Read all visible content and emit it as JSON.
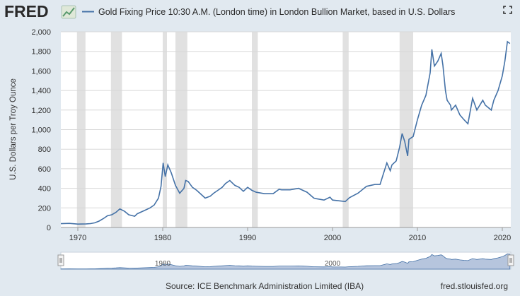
{
  "header": {
    "logo_text": "FRED",
    "legend_label": "Gold Fixing Price 10:30 A.M. (London time) in London Bullion Market, based in U.S. Dollars",
    "fullscreen_icon": "expand-icon"
  },
  "footer": {
    "source": "Source: ICE Benchmark Administration Limited (IBA)",
    "site": "fred.stlouisfed.org"
  },
  "colors": {
    "background": "#e1e9f0",
    "plot_bg": "#ffffff",
    "series": "#4572a7",
    "recession": "#e1e1e1",
    "navigator_fill": "#9db2d1"
  },
  "chart_data": {
    "type": "line",
    "title": "",
    "xlabel": "",
    "ylabel": "U.S. Dollars per Troy Ounce",
    "xlim": [
      1968,
      2021
    ],
    "ylim": [
      0,
      2000
    ],
    "x_ticks": [
      1970,
      1980,
      1990,
      2000,
      2010,
      2020
    ],
    "y_ticks": [
      0,
      200,
      400,
      600,
      800,
      1000,
      1200,
      1400,
      1600,
      1800,
      2000
    ],
    "y_tick_labels": [
      "0",
      "200",
      "400",
      "600",
      "800",
      "1,000",
      "1,200",
      "1,400",
      "1,600",
      "1,800",
      "2,000"
    ],
    "grid": "horizontal",
    "navigator_ticks": [
      "1980",
      "2000"
    ],
    "recessions": [
      [
        1969.9,
        1970.9
      ],
      [
        1973.9,
        1975.2
      ],
      [
        1980.0,
        1980.5
      ],
      [
        1981.5,
        1982.9
      ],
      [
        1990.5,
        1991.2
      ],
      [
        2001.2,
        2001.9
      ],
      [
        2007.9,
        2009.5
      ]
    ],
    "series": [
      {
        "name": "Gold Fixing Price 10:30 A.M. (London time) in London Bullion Market, based in U.S. Dollars",
        "x": [
          1968.0,
          1969.0,
          1970.0,
          1971.0,
          1971.5,
          1972.0,
          1972.5,
          1973.0,
          1973.5,
          1974.0,
          1974.5,
          1974.95,
          1975.5,
          1976.0,
          1976.7,
          1977.0,
          1978.0,
          1978.5,
          1979.0,
          1979.5,
          1979.8,
          1980.05,
          1980.3,
          1980.6,
          1980.8,
          1981.0,
          1981.5,
          1982.0,
          1982.5,
          1982.7,
          1983.0,
          1983.5,
          1984.0,
          1984.5,
          1985.0,
          1985.6,
          1986.0,
          1986.5,
          1987.0,
          1987.4,
          1987.9,
          1988.5,
          1989.0,
          1989.5,
          1990.0,
          1990.5,
          1991.0,
          1992.0,
          1993.0,
          1993.7,
          1994.0,
          1995.0,
          1996.0,
          1996.5,
          1997.0,
          1997.8,
          1998.0,
          1999.0,
          1999.7,
          2000.0,
          2001.0,
          2001.5,
          2002.0,
          2003.0,
          2004.0,
          2005.0,
          2005.6,
          2006.0,
          2006.4,
          2006.8,
          2007.0,
          2007.5,
          2007.9,
          2008.2,
          2008.5,
          2008.85,
          2009.0,
          2009.5,
          2010.0,
          2010.5,
          2011.0,
          2011.5,
          2011.7,
          2012.0,
          2012.4,
          2012.8,
          2013.0,
          2013.3,
          2013.5,
          2013.9,
          2014.0,
          2014.5,
          2015.0,
          2015.5,
          2015.95,
          2016.5,
          2017.0,
          2017.7,
          2018.0,
          2018.7,
          2019.0,
          2019.5,
          2020.0,
          2020.3,
          2020.6,
          2020.9
        ],
        "values": [
          39,
          42,
          35,
          37,
          40,
          48,
          65,
          90,
          120,
          130,
          155,
          190,
          165,
          130,
          115,
          140,
          180,
          200,
          230,
          300,
          420,
          660,
          520,
          640,
          600,
          560,
          430,
          350,
          400,
          480,
          470,
          410,
          380,
          340,
          300,
          320,
          350,
          380,
          410,
          450,
          480,
          430,
          410,
          370,
          410,
          380,
          360,
          345,
          345,
          390,
          385,
          385,
          400,
          380,
          360,
          300,
          295,
          280,
          310,
          280,
          270,
          265,
          305,
          350,
          420,
          440,
          440,
          550,
          660,
          580,
          640,
          680,
          820,
          960,
          880,
          730,
          900,
          930,
          1100,
          1250,
          1350,
          1580,
          1820,
          1650,
          1700,
          1780,
          1660,
          1400,
          1300,
          1250,
          1200,
          1250,
          1150,
          1100,
          1060,
          1320,
          1200,
          1300,
          1250,
          1200,
          1300,
          1400,
          1550,
          1700,
          1900,
          1880
        ]
      }
    ]
  }
}
